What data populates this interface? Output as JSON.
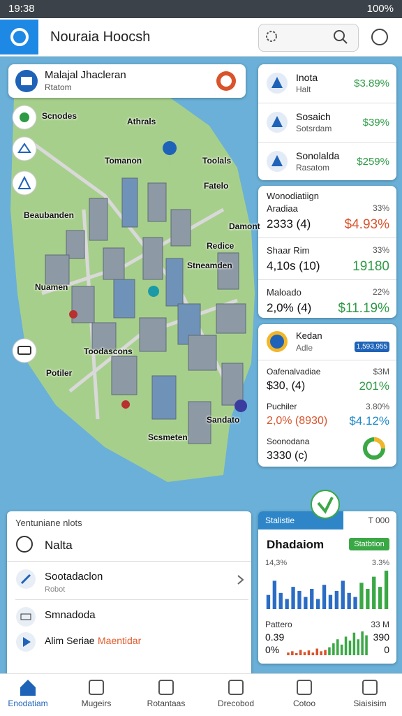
{
  "status_bar": {
    "time": "19:38",
    "battery": "100%"
  },
  "header": {
    "title": "Nouraia Hoocsh"
  },
  "location_card": {
    "title": "Malajal Jhacleran",
    "subtitle": "Rtatom"
  },
  "map_labels": [
    "Scnodes",
    "Athrals",
    "Tomanon",
    "Toolals",
    "Fatelo",
    "Beaubanden",
    "Damont",
    "Redice",
    "Stneamden",
    "Nuamen",
    "Toodascons",
    "Potiler",
    "Sandato",
    "Scsmeten"
  ],
  "stock_cards": [
    {
      "name": "Inota",
      "sub": "Halt",
      "value": "$3.89%"
    },
    {
      "name": "Sosaich",
      "sub": "Sotsrdam",
      "value": "$39%"
    },
    {
      "name": "Sonolalda",
      "sub": "Rasatom",
      "value": "$259%"
    }
  ],
  "market_card": {
    "title": "Wonodiatiign",
    "rows": [
      {
        "name": "Aradiaa",
        "amount": "2333 (4)",
        "pct": "33%",
        "value": "$4.93%"
      },
      {
        "name": "Shaar Rim",
        "amount": "4,10s (10)",
        "pct": "33%",
        "value": "19180"
      },
      {
        "name": "Maloado",
        "amount": "2,0% (4)",
        "pct": "22%",
        "value": "$11.19%"
      }
    ]
  },
  "detail_card": {
    "title": "Kedan",
    "sub": "Adle",
    "badge": "1,593,955",
    "rows": [
      {
        "name": "Oafenalvadiae",
        "pct": "$3M",
        "amount": "$30, (4)",
        "value": "201%"
      },
      {
        "name": "Puchiler",
        "pct": "3.80%",
        "amount": "2,0% (8930)",
        "value": "$4.12%"
      },
      {
        "name": "Soonodana",
        "amount": "3330 (c)"
      }
    ]
  },
  "list_panel": {
    "header": "Yentuniane nlots",
    "items": [
      {
        "title": "Nalta"
      },
      {
        "title": "Sootadaclon",
        "sub": "Robot"
      },
      {
        "title": "Smnadoda"
      },
      {
        "title": "Alim Seriae",
        "tag": "Maentidar"
      }
    ]
  },
  "stats_panel": {
    "tab": "Stalistie",
    "tab_value": "T 000",
    "title": "Dhadaiom",
    "badge": "Statbtion",
    "top_left": "14,3%",
    "top_right": "3.3%",
    "chart_top": {
      "series": [
        {
          "color": "#2b6cc4",
          "values": [
            35,
            70,
            40,
            25,
            55,
            45,
            30,
            50,
            25,
            60,
            35,
            45,
            70,
            40,
            30
          ]
        },
        {
          "color": "#3aa845",
          "values": [
            65,
            50,
            80,
            55,
            95
          ]
        }
      ]
    },
    "bottom_label": "Pattero",
    "bottom_label_value": "33 M",
    "bottom_left_1": "0.39",
    "bottom_right_1": "390",
    "bottom_left_2": "0%",
    "bottom_right_2": "0",
    "chart_bottom": {
      "series": [
        {
          "color": "#d9532b",
          "values": [
            10,
            15,
            8,
            20,
            12,
            18,
            10,
            25,
            15,
            20
          ]
        },
        {
          "color": "#3aa845",
          "values": [
            30,
            45,
            60,
            40,
            70,
            55,
            85,
            60,
            90,
            75
          ]
        }
      ]
    }
  },
  "nav": [
    "Enodatiam",
    "Mugeirs",
    "Rotantaas",
    "Drecobod",
    "Cotoo",
    "Siaisisim"
  ]
}
